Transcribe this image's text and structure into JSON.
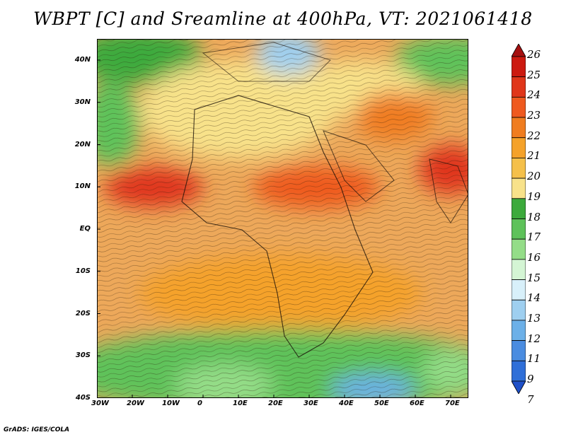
{
  "title": "WBPT [C] and Sreamline at 400hPa, VT: 2021061418",
  "credit": "GrADS: IGES/COLA",
  "map": {
    "lat_labels": [
      "40N",
      "30N",
      "20N",
      "10N",
      "EQ",
      "10S",
      "20S",
      "30S",
      "40S"
    ],
    "lon_labels": [
      "30W",
      "20W",
      "10W",
      "0",
      "10E",
      "20E",
      "30E",
      "40E",
      "50E",
      "60E",
      "70E"
    ]
  },
  "colorbar": {
    "labels": [
      "26",
      "25",
      "24",
      "23",
      "22",
      "21",
      "20",
      "19",
      "18",
      "17",
      "16",
      "15",
      "14",
      "13",
      "12",
      "11",
      "9",
      "7"
    ],
    "colors": [
      "#a50f0f",
      "#cc1a10",
      "#e0361a",
      "#ef5a1f",
      "#f07d20",
      "#f5a22a",
      "#f5c04a",
      "#f8e28a",
      "#3caa3c",
      "#5ec25a",
      "#94dd88",
      "#d4f5d4",
      "#d8f0fa",
      "#9ecff0",
      "#6cb0e8",
      "#4a8ce0",
      "#2f6fd8",
      "#1f50c8"
    ]
  }
}
